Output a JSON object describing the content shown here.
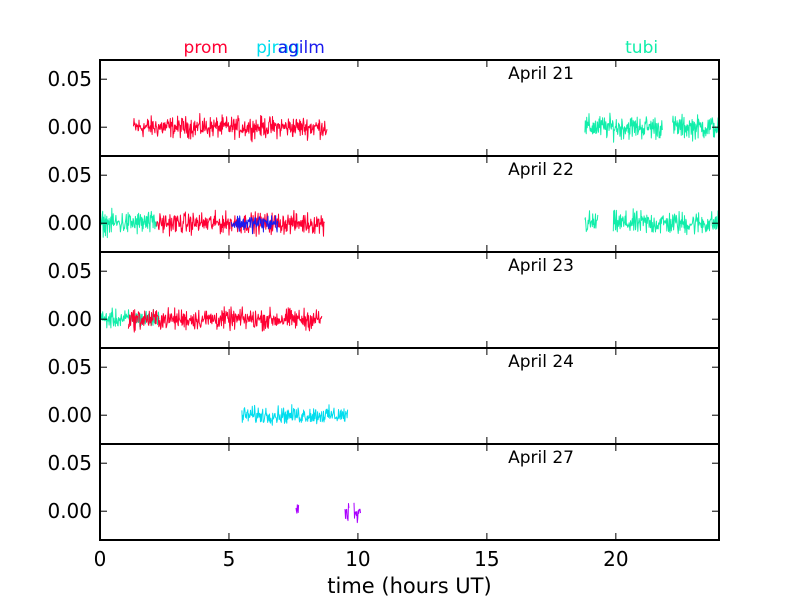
{
  "chart_data": {
    "type": "line",
    "xlabel": "time (hours UT)",
    "xlim": [
      0,
      24
    ],
    "xticks": [
      0,
      5,
      10,
      15,
      20
    ],
    "ylim": [
      -0.03,
      0.07
    ],
    "yticks": [
      0.0,
      0.05
    ],
    "ytick_labels": [
      "0.00",
      "0.05"
    ],
    "legend_labels": [
      {
        "text": "prom",
        "x": 4.1,
        "color": "#ff0033"
      },
      {
        "text": "pjrag",
        "x": 6.9,
        "color": "#00ddee"
      },
      {
        "text": "agilm",
        "x": 7.8,
        "color": "#1a1aee"
      },
      {
        "text": "tubi",
        "x": 21.0,
        "color": "#11eeaa"
      }
    ],
    "panels": [
      {
        "label": "April 21",
        "series": [
          {
            "color": "#ff0033",
            "segments": [
              [
                1.3,
                8.8
              ]
            ],
            "amp": 0.016
          },
          {
            "color": "#11eeaa",
            "segments": [
              [
                18.8,
                21.8
              ],
              [
                22.2,
                24.0
              ]
            ],
            "amp": 0.018
          }
        ]
      },
      {
        "label": "April 22",
        "series": [
          {
            "color": "#11eeaa",
            "segments": [
              [
                0.0,
                2.2
              ],
              [
                18.8,
                19.3
              ],
              [
                19.9,
                24.0
              ]
            ],
            "amp": 0.018
          },
          {
            "color": "#ff0033",
            "segments": [
              [
                2.2,
                8.7
              ]
            ],
            "amp": 0.016
          },
          {
            "color": "#1a1aee",
            "segments": [
              [
                5.1,
                6.9
              ]
            ],
            "amp": 0.013
          }
        ]
      },
      {
        "label": "April 23",
        "series": [
          {
            "color": "#11eeaa",
            "segments": [
              [
                0.0,
                2.3
              ]
            ],
            "amp": 0.014
          },
          {
            "color": "#ff0033",
            "segments": [
              [
                1.1,
                8.6
              ]
            ],
            "amp": 0.016
          }
        ]
      },
      {
        "label": "April 24",
        "series": [
          {
            "color": "#00ddee",
            "segments": [
              [
                5.5,
                9.6
              ]
            ],
            "amp": 0.013
          }
        ]
      },
      {
        "label": "April 27",
        "series": [
          {
            "color": "#aa00ff",
            "segments": [
              [
                7.6,
                7.7
              ],
              [
                9.5,
                9.65
              ],
              [
                9.85,
                10.1
              ]
            ],
            "amp": 0.016
          }
        ]
      }
    ]
  }
}
